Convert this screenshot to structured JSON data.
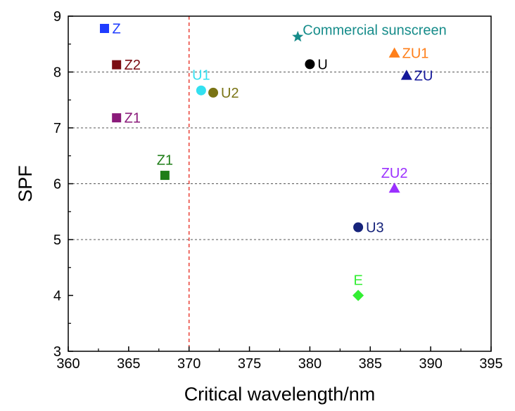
{
  "chart_data": {
    "type": "scatter",
    "title": "",
    "xlabel": "Critical wavelength/nm",
    "ylabel": "SPF",
    "xlim": [
      360,
      395
    ],
    "ylim": [
      3,
      9
    ],
    "x_ticks": [
      "360",
      "365",
      "370",
      "375",
      "380",
      "385",
      "390",
      "395"
    ],
    "y_ticks": [
      "3",
      "4",
      "5",
      "6",
      "7",
      "8",
      "9"
    ],
    "grid": "horizontal dashed lines at 5, 6, 7, 8",
    "reference_line": {
      "x": 370,
      "style": "dashed",
      "color": "#e8352b"
    },
    "legend": "none",
    "points": [
      {
        "label": "Z",
        "x": 363,
        "y": 8.78,
        "marker": "square",
        "color": "#1f3cff",
        "label_pos": "right"
      },
      {
        "label": "Z2",
        "x": 364,
        "y": 8.13,
        "marker": "square",
        "color": "#7b0d14",
        "label_pos": "right"
      },
      {
        "label": "Z1",
        "x": 364,
        "y": 7.18,
        "marker": "square",
        "color": "#8a1a7a",
        "label_pos": "right"
      },
      {
        "label": "Z1",
        "x": 368,
        "y": 6.15,
        "marker": "square",
        "color": "#1e7d17",
        "label_pos": "above"
      },
      {
        "label": "U1",
        "x": 371,
        "y": 7.67,
        "marker": "circle",
        "color": "#33e0f0",
        "label_pos": "above"
      },
      {
        "label": "U2",
        "x": 372,
        "y": 7.63,
        "marker": "circle",
        "color": "#7a7415",
        "label_pos": "right"
      },
      {
        "label": "Commercial sunscreen",
        "x": 379,
        "y": 8.63,
        "marker": "star",
        "color": "#168c8a",
        "label_pos": "right-up"
      },
      {
        "label": "U",
        "x": 380,
        "y": 8.14,
        "marker": "circle",
        "color": "#000000",
        "label_pos": "right"
      },
      {
        "label": "ZU1",
        "x": 387,
        "y": 8.34,
        "marker": "triangle",
        "color": "#ff7f1a",
        "label_pos": "right"
      },
      {
        "label": "ZU",
        "x": 388,
        "y": 7.94,
        "marker": "triangle",
        "color": "#15199a",
        "label_pos": "right"
      },
      {
        "label": "ZU2",
        "x": 387,
        "y": 5.92,
        "marker": "triangle",
        "color": "#9b30ff",
        "label_pos": "above"
      },
      {
        "label": "U3",
        "x": 384,
        "y": 5.22,
        "marker": "circle",
        "color": "#16237a",
        "label_pos": "right"
      },
      {
        "label": "E",
        "x": 384,
        "y": 4.0,
        "marker": "diamond",
        "color": "#33ee33",
        "label_pos": "above"
      }
    ]
  }
}
